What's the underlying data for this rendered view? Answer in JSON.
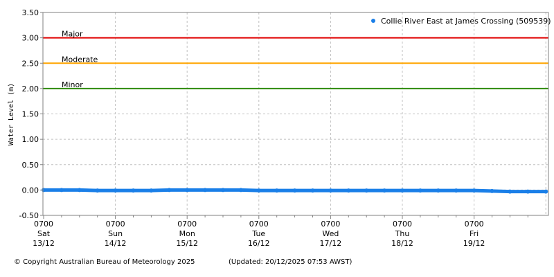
{
  "chart_data": {
    "type": "line",
    "ylabel": "Water Level (m)",
    "ylim": [
      -0.5,
      3.5
    ],
    "yticks": [
      "3.50",
      "3.00",
      "2.50",
      "2.00",
      "1.50",
      "1.00",
      "0.50",
      "0.00",
      "-0.50"
    ],
    "xlim": [
      "2025-12-13 07:00",
      "2025-12-20 07:53"
    ],
    "xticks": [
      {
        "time": "0700",
        "day": "Sat",
        "date": "13/12"
      },
      {
        "time": "0700",
        "day": "Sun",
        "date": "14/12"
      },
      {
        "time": "0700",
        "day": "Mon",
        "date": "15/12"
      },
      {
        "time": "0700",
        "day": "Tue",
        "date": "16/12"
      },
      {
        "time": "0700",
        "day": "Wed",
        "date": "17/12"
      },
      {
        "time": "0700",
        "day": "Thu",
        "date": "18/12"
      },
      {
        "time": "0700",
        "day": "Fri",
        "date": "19/12"
      }
    ],
    "grid": true,
    "legend_position": "top-right",
    "thresholds": [
      {
        "name": "Major",
        "value": 3.0,
        "color": "#e00000"
      },
      {
        "name": "Moderate",
        "value": 2.5,
        "color": "#ffa500"
      },
      {
        "name": "Minor",
        "value": 2.0,
        "color": "#2e8b00"
      }
    ],
    "series": [
      {
        "name": "Collie River East at James Crossing (509539)",
        "color": "#1a7fe8",
        "x": [
          "2025-12-13 07:00",
          "2025-12-13 13:00",
          "2025-12-13 19:00",
          "2025-12-14 01:00",
          "2025-12-14 07:00",
          "2025-12-14 13:00",
          "2025-12-14 19:00",
          "2025-12-15 01:00",
          "2025-12-15 07:00",
          "2025-12-15 13:00",
          "2025-12-15 19:00",
          "2025-12-16 01:00",
          "2025-12-16 07:00",
          "2025-12-16 13:00",
          "2025-12-16 19:00",
          "2025-12-17 01:00",
          "2025-12-17 07:00",
          "2025-12-17 13:00",
          "2025-12-17 19:00",
          "2025-12-18 01:00",
          "2025-12-18 07:00",
          "2025-12-18 13:00",
          "2025-12-18 19:00",
          "2025-12-19 01:00",
          "2025-12-19 07:00",
          "2025-12-19 13:00",
          "2025-12-19 19:00",
          "2025-12-20 01:00",
          "2025-12-20 07:00"
        ],
        "y": [
          0.0,
          0.0,
          0.0,
          -0.01,
          -0.01,
          -0.01,
          -0.01,
          0.0,
          0.0,
          0.0,
          0.0,
          0.0,
          -0.01,
          -0.01,
          -0.01,
          -0.01,
          -0.01,
          -0.01,
          -0.01,
          -0.01,
          -0.01,
          -0.01,
          -0.01,
          -0.01,
          -0.01,
          -0.02,
          -0.03,
          -0.03,
          -0.03
        ]
      }
    ]
  },
  "footer": {
    "copyright": "© Copyright Australian Bureau of Meteorology 2025",
    "updated": "(Updated: 20/12/2025 07:53 AWST)"
  }
}
